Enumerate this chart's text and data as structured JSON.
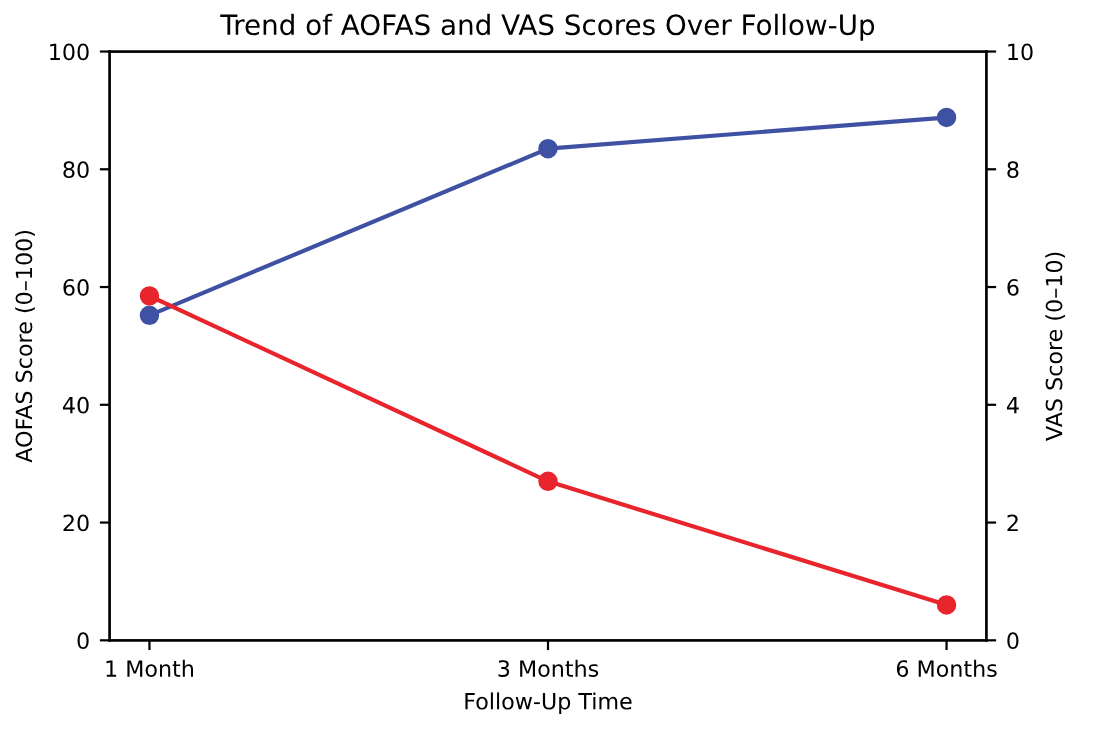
{
  "chart_data": {
    "type": "line",
    "title": "Trend of AOFAS and VAS Scores Over Follow-Up",
    "xlabel": "Follow-Up Time",
    "ylabel": "AOFAS Score (0–100)",
    "y2label": "VAS Score (0–10)",
    "categories": [
      "1 Month",
      "3 Months",
      "6 Months"
    ],
    "series": [
      {
        "color": "#3f51a3",
        "values": [
          55.2,
          83.5,
          88.8
        ]
      },
      {
        "color": "#e8242c",
        "values": [
          5.85,
          2.7,
          0.6
        ],
        "axis": "y2"
      }
    ],
    "ylim": [
      0,
      100
    ],
    "yticks": [
      0,
      20,
      40,
      60,
      80,
      100
    ],
    "y2lim": [
      0,
      10
    ],
    "y2ticks": [
      0,
      2,
      4,
      6,
      8,
      10
    ],
    "marker": "circle",
    "line_style": "solid",
    "grid": false,
    "legend": false
  }
}
